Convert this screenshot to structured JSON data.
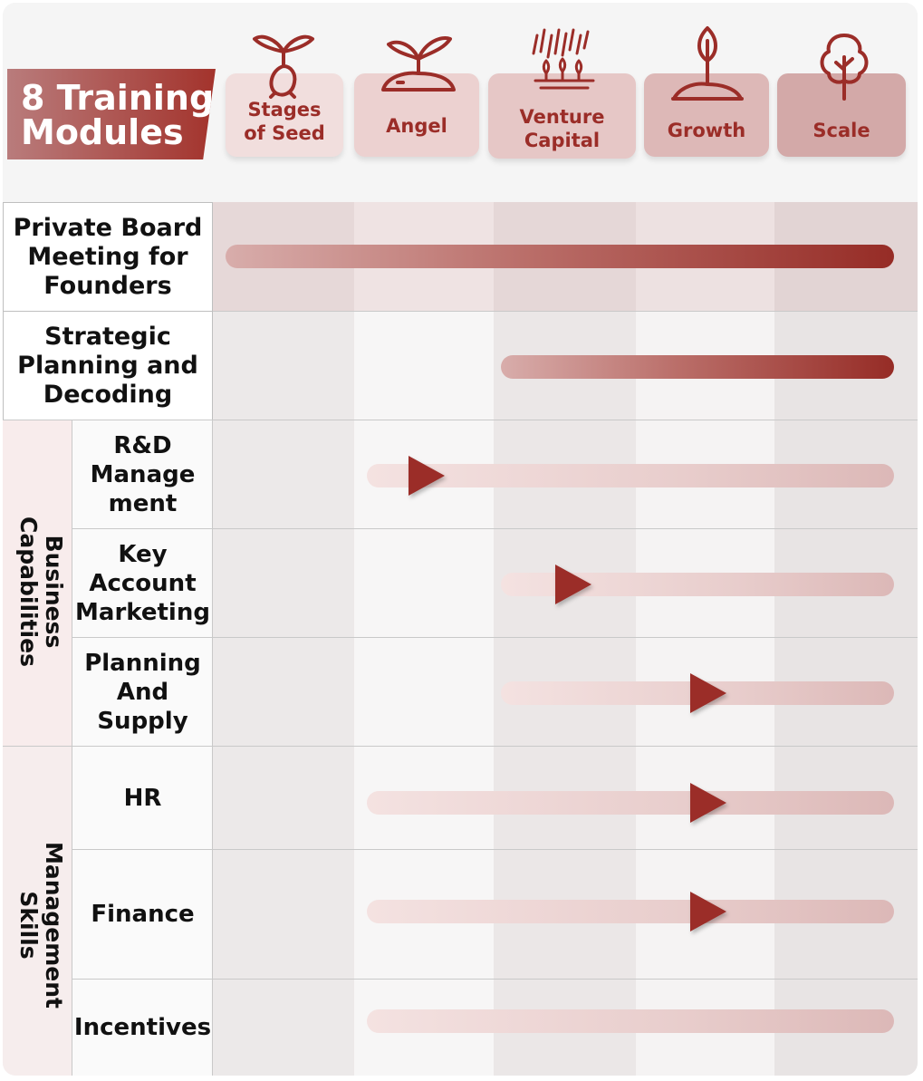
{
  "title": {
    "line1": "8 Training",
    "line2": "Modules"
  },
  "stages": [
    {
      "label_line1": "Stages",
      "label_line2": "of Seed",
      "icon": "seed-sprout-icon"
    },
    {
      "label_line1": "Angel",
      "label_line2": "",
      "icon": "seedling-mound-icon"
    },
    {
      "label_line1": "Venture",
      "label_line2": "Capital",
      "icon": "rain-sprouts-icon"
    },
    {
      "label_line1": "Growth",
      "label_line2": "",
      "icon": "young-plant-icon"
    },
    {
      "label_line1": "Scale",
      "label_line2": "",
      "icon": "tree-icon"
    }
  ],
  "modules": [
    {
      "label": [
        "Private Board",
        "Meeting for",
        "Founders"
      ],
      "starts_at_stage": "Stages of Seed",
      "style": "solid-gradient"
    },
    {
      "label": [
        "Strategic",
        "Planning and",
        "Decoding"
      ],
      "starts_at_stage": "Venture Capital",
      "style": "solid-gradient"
    },
    {
      "label": [
        "R&D",
        "Manage",
        "ment"
      ],
      "group": "Business Capabilities",
      "starts_at_stage": "Angel",
      "marker_stage": "Angel"
    },
    {
      "label": [
        "Key",
        "Account",
        "Marketing"
      ],
      "group": "Business Capabilities",
      "starts_at_stage": "Venture Capital",
      "marker_stage": "Venture Capital"
    },
    {
      "label": [
        "Planning",
        "And",
        "Supply"
      ],
      "group": "Business Capabilities",
      "starts_at_stage": "Venture Capital",
      "marker_stage": "Growth"
    },
    {
      "label": [
        "HR"
      ],
      "group": "Management Skills",
      "starts_at_stage": "Angel",
      "marker_stage": "Growth"
    },
    {
      "label": [
        "Finance"
      ],
      "group": "Management Skills",
      "starts_at_stage": "Angel",
      "marker_stage": "Growth"
    },
    {
      "label": [
        "Incentives"
      ],
      "group": "Management Skills",
      "starts_at_stage": "Angel",
      "marker_stage": ""
    }
  ],
  "groups": [
    {
      "line1": "Business",
      "line2": "Capabilities"
    },
    {
      "line1": "Management",
      "line2": "Skills"
    }
  ],
  "colors": {
    "accent": "#9b2d28",
    "accent_light": "#dcb8b7",
    "banner_start": "#b97c7c",
    "banner_end": "#a3332c"
  }
}
